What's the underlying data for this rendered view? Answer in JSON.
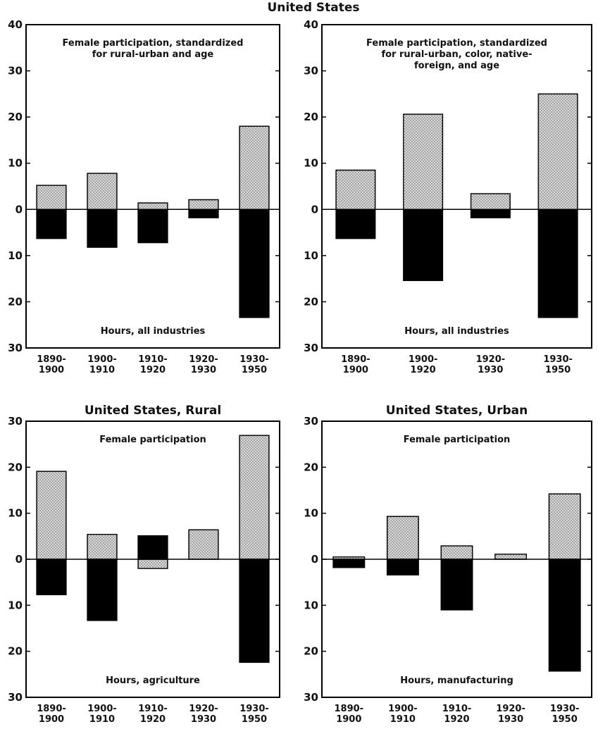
{
  "title": "United States",
  "chart_data": [
    {
      "type": "bar",
      "categories": [
        "1890-\n1900",
        "1900-\n1910",
        "1910-\n1920",
        "1920-\n1930",
        "1930-\n1950"
      ],
      "series": [
        {
          "name": "Female participation, standardized\nfor rural-urban and age",
          "color": "#d9d9d9",
          "values": [
            5.2,
            7.8,
            1.4,
            2.1,
            18
          ]
        },
        {
          "name": "Hours, all industries",
          "color": "#000000",
          "values": [
            -6.3,
            -8.2,
            -7.2,
            -1.8,
            -23.4
          ]
        }
      ],
      "ylim": [
        -30,
        40
      ],
      "yticks": [
        40,
        30,
        20,
        10,
        0,
        {
          "value": -10,
          "label": "10"
        },
        {
          "value": -20,
          "label": "20"
        },
        {
          "value": -30,
          "label": "30"
        }
      ]
    },
    {
      "type": "bar",
      "categories": [
        "1890-\n1900",
        "1900-\n1920",
        "1920-\n1930",
        "1930-\n1950"
      ],
      "series": [
        {
          "name": "Female participation, standardized\nfor rural-urban, color, native-\nforeign, and age",
          "color": "#d9d9d9",
          "values": [
            8.5,
            20.6,
            3.4,
            25
          ]
        },
        {
          "name": "Hours, all industries",
          "color": "#000000",
          "values": [
            -6.3,
            -15.4,
            -1.8,
            -23.4
          ]
        }
      ],
      "ylim": [
        -30,
        40
      ],
      "yticks": [
        40,
        30,
        20,
        10,
        0,
        {
          "value": -10,
          "label": "10"
        },
        {
          "value": -20,
          "label": "20"
        },
        {
          "value": -30,
          "label": "30"
        }
      ]
    },
    {
      "type": "bar",
      "title": "United States, Rural",
      "categories": [
        "1890-\n1900",
        "1900-\n1910",
        "1910-\n1920",
        "1920-\n1930",
        "1930-\n1950"
      ],
      "series": [
        {
          "name": "Female participation",
          "color": "#d9d9d9",
          "values": [
            19.1,
            5.4,
            -2,
            6.4,
            26.9
          ]
        },
        {
          "name": "Hours, agriculture",
          "color": "#000000",
          "values": [
            -7.7,
            -13.3,
            5.1,
            0,
            -22.4
          ]
        }
      ],
      "ylim": [
        -30,
        30
      ],
      "yticks": [
        30,
        20,
        10,
        0,
        {
          "value": -10,
          "label": "10"
        },
        {
          "value": -20,
          "label": "20"
        },
        {
          "value": -30,
          "label": "30"
        }
      ]
    },
    {
      "type": "bar",
      "title": "United States, Urban",
      "categories": [
        "1890-\n1900",
        "1900-\n1910",
        "1910-\n1920",
        "1920-\n1930",
        "1930-\n1950"
      ],
      "series": [
        {
          "name": "Female participation",
          "color": "#d9d9d9",
          "values": [
            0.5,
            9.3,
            2.9,
            1.1,
            14.2
          ]
        },
        {
          "name": "Hours, manufacturing",
          "color": "#000000",
          "values": [
            -1.8,
            -3.4,
            -11,
            0,
            -24.3
          ]
        }
      ],
      "ylim": [
        -30,
        30
      ],
      "yticks": [
        30,
        20,
        10,
        0,
        {
          "value": -10,
          "label": "10"
        },
        {
          "value": -20,
          "label": "20"
        },
        {
          "value": -30,
          "label": "30"
        }
      ]
    }
  ]
}
